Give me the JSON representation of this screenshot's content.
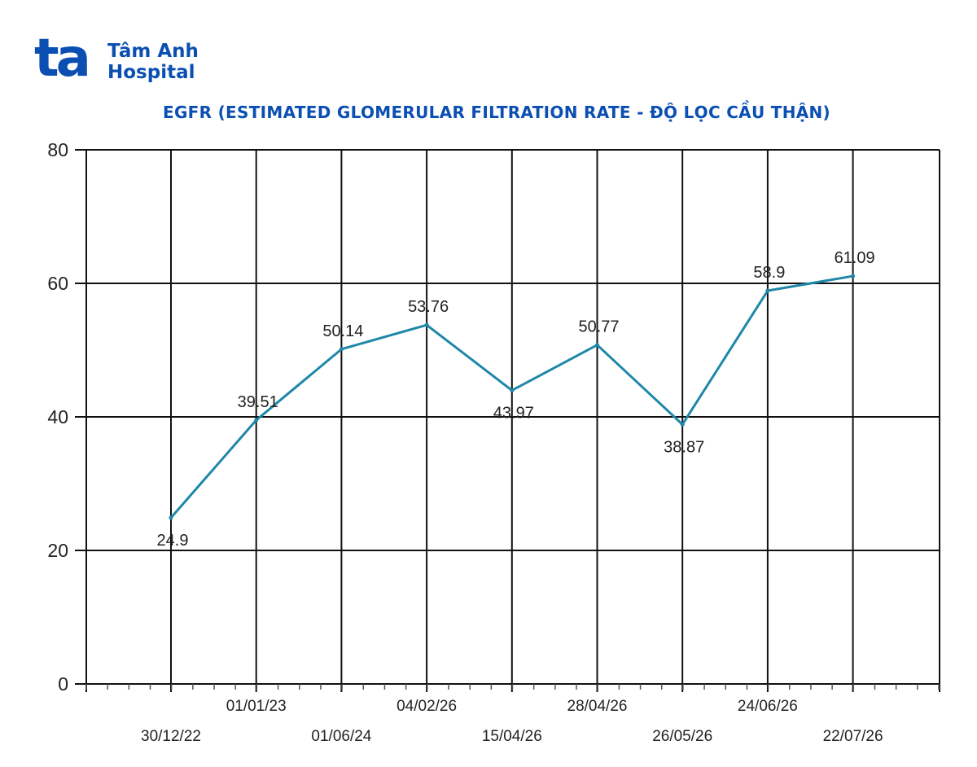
{
  "logo": {
    "mark": "ta",
    "line1": "Tâm Anh",
    "line2": "Hospital",
    "color": "#0b4fb3"
  },
  "chart_data": {
    "type": "line",
    "title": "EGFR (ESTIMATED GLOMERULAR FILTRATION RATE - ĐỘ LỌC CẦU THẬN)",
    "categories": [
      "30/12/22",
      "01/01/23",
      "01/06/24",
      "04/02/26",
      "15/04/26",
      "28/04/26",
      "26/05/26",
      "24/06/26",
      "22/07/26"
    ],
    "values": [
      24.9,
      39.51,
      50.14,
      53.76,
      43.97,
      50.77,
      38.87,
      58.9,
      61.09
    ],
    "data_labels": [
      "24.9",
      "39.51",
      "50.14",
      "53.76",
      "43.97",
      "50.77",
      "38.87",
      "58.9",
      "61.09"
    ],
    "ylim": [
      0,
      80
    ],
    "yticks": [
      0,
      20,
      40,
      60,
      80
    ],
    "xlabel": "",
    "ylabel": "",
    "grid": true,
    "legend": "none",
    "line_color": "#1f87a8",
    "title_color": "#0b4fb3"
  }
}
